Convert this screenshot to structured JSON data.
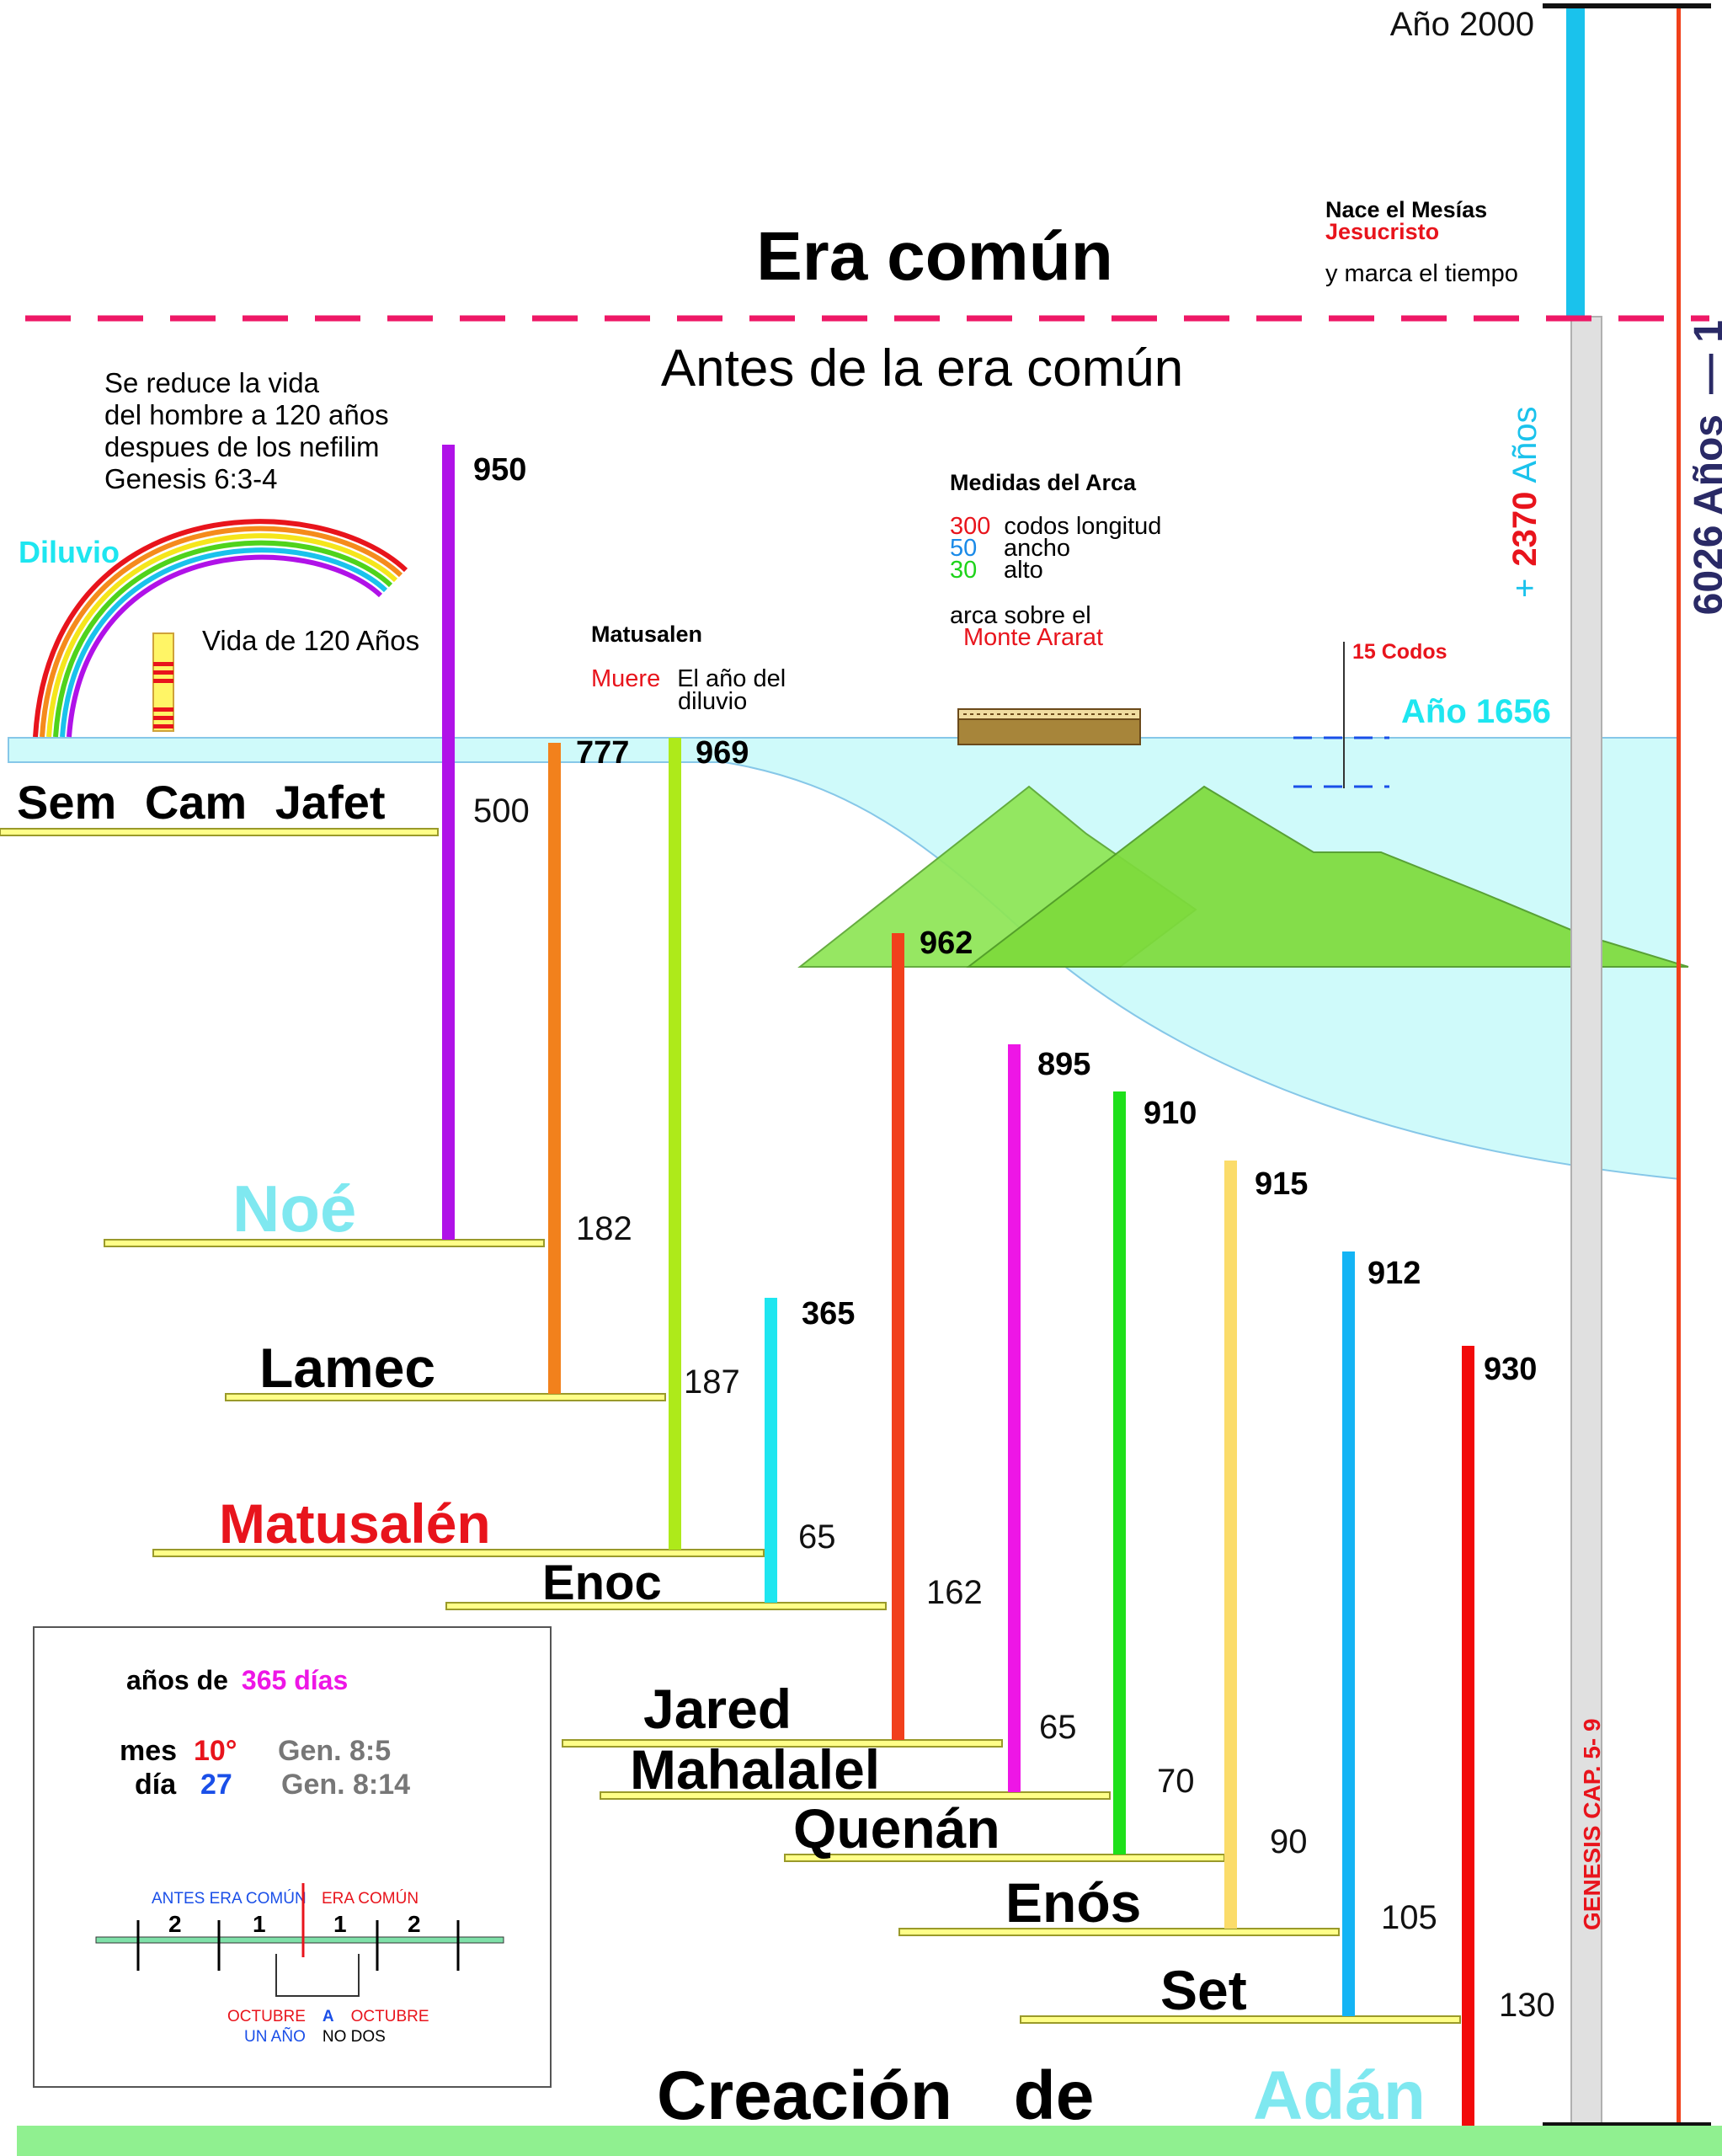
{
  "top": {
    "year_2000": "Año 2000",
    "era_comun": "Era común",
    "antes_era": "Antes de la era común",
    "mesias_line1": "Nace el Mesías",
    "mesias_line2": "Jesucristo",
    "mesias_line3": "y marca el tiempo"
  },
  "vertical": {
    "total_years": "6026 Años",
    "total_suffix": "— 1",
    "plus_prefix": "+",
    "plus_num": "2370",
    "plus_suffix": "Años",
    "genesis": "GENESIS CAP. 5- 9"
  },
  "notes": {
    "reduce": [
      "Se reduce la vida",
      "del hombre a 120 años",
      "despues de los nefilim",
      "Genesis 6:3-4"
    ],
    "diluvio": "Diluvio",
    "vida120": "Vida de 120 Años",
    "matusalen_title": "Matusalen",
    "matusalen_muere": "Muere",
    "matusalen_rest1": "El año del",
    "matusalen_rest2": "diluvio",
    "arca_title": "Medidas del Arca",
    "arca_l_num": "300",
    "arca_l_txt": "codos longitud",
    "arca_w_num": "50",
    "arca_w_txt": "ancho",
    "arca_h_num": "30",
    "arca_h_txt": "alto",
    "arca_sobre": "arca sobre el",
    "ararat": "Monte Ararat",
    "codos15": "15 Codos",
    "ano1656": "Año 1656"
  },
  "people": [
    {
      "name": "Sem Cam Jafet",
      "color": "#000000"
    },
    {
      "name": "Noé",
      "color": "#7fe8f0"
    },
    {
      "name": "Lamec",
      "color": "#000000"
    },
    {
      "name": "Matusalén",
      "color": "#e8141c"
    },
    {
      "name": "Enoc",
      "color": "#000000"
    },
    {
      "name": "Jared",
      "color": "#000000"
    },
    {
      "name": "Mahalalel",
      "color": "#000000"
    },
    {
      "name": "Quenán",
      "color": "#000000"
    },
    {
      "name": "Enós",
      "color": "#000000"
    },
    {
      "name": "Set",
      "color": "#000000"
    }
  ],
  "bars": [
    {
      "who": "Noé",
      "life": "950",
      "begat": "500",
      "color": "#b012e8"
    },
    {
      "who": "Lamec",
      "life": "777",
      "begat": "182",
      "color": "#f2811c"
    },
    {
      "who": "Matusalén",
      "life": "969",
      "begat": "187",
      "color": "#aeea1a"
    },
    {
      "who": "Enoc",
      "life": "365",
      "begat": "65",
      "color": "#1ee6f0"
    },
    {
      "who": "Jared",
      "life": "962",
      "begat": "162",
      "color": "#f1401c"
    },
    {
      "who": "Mahalalel",
      "life": "895",
      "begat": "65",
      "color": "#ee16e6"
    },
    {
      "who": "Quenán",
      "life": "910",
      "begat": "70",
      "color": "#1ee01a"
    },
    {
      "who": "Enós",
      "life": "915",
      "begat": "90",
      "color": "#fbdc6a"
    },
    {
      "who": "Set",
      "life": "912",
      "begat": "105",
      "color": "#14b4f5"
    },
    {
      "who": "Adán",
      "life": "930",
      "begat": "130",
      "color": "#f20a0a"
    }
  ],
  "bottom": {
    "creacion": "Creación de",
    "adan": "Adán"
  },
  "legend": {
    "anos_pre": "años de",
    "anos_num": "365 días",
    "mes_label": "mes",
    "mes_val": "10°",
    "mes_ref": "Gen. 8:5",
    "dia_label": "día",
    "dia_val": "27",
    "dia_ref": "Gen. 8:14",
    "antes": "ANTES ERA COMÚN",
    "era": "ERA COMÚN",
    "tick_left": [
      "2",
      "1"
    ],
    "tick_right": [
      "1",
      "2"
    ],
    "oct1": "OCTUBRE",
    "a": "A",
    "oct2": "OCTUBRE",
    "un_ano": "UN AÑO",
    "no_dos": "NO DOS"
  }
}
